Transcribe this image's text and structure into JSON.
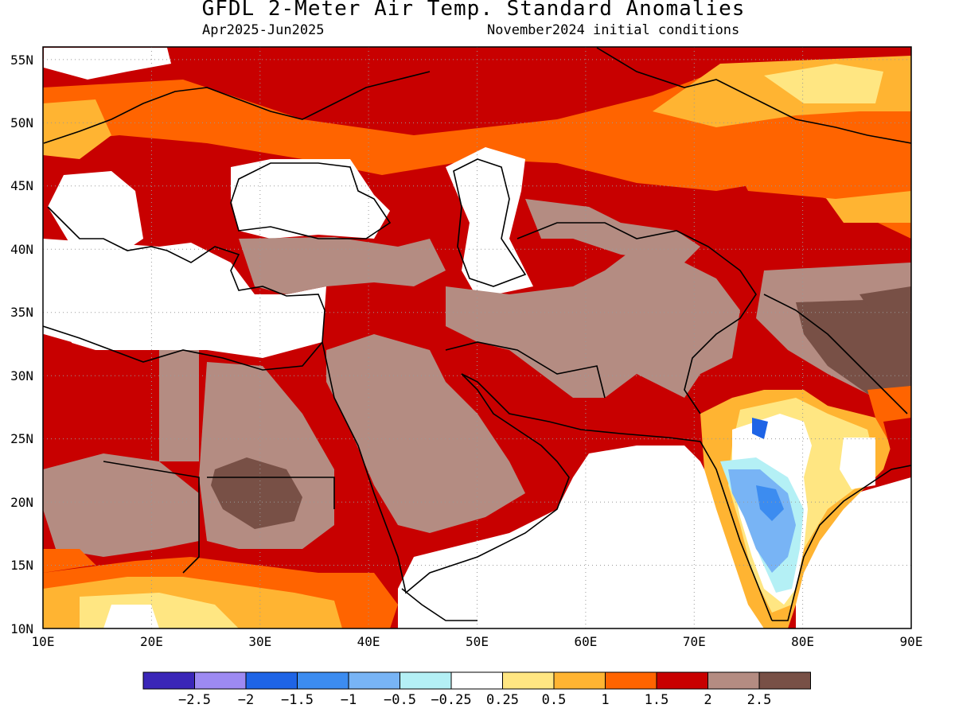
{
  "title": "GFDL 2-Meter Air Temp. Standard Anomalies",
  "subtitle_left": "Apr2025-Jun2025",
  "subtitle_right": "November2024 initial conditions",
  "axes": {
    "lon_range": [
      10,
      90
    ],
    "lat_range": [
      10,
      56
    ],
    "x_ticks": [
      "10E",
      "20E",
      "30E",
      "40E",
      "50E",
      "60E",
      "70E",
      "80E",
      "90E"
    ],
    "y_ticks": [
      "10N",
      "15N",
      "20N",
      "25N",
      "30N",
      "35N",
      "40N",
      "45N",
      "50N",
      "55N"
    ]
  },
  "legend": {
    "colors": [
      "#3a26b8",
      "#9d8af2",
      "#1e64e6",
      "#3c8cf0",
      "#78b4f5",
      "#b4f0f5",
      "#ffffff",
      "#ffe682",
      "#ffb432",
      "#ff6400",
      "#c80000",
      "#b48c82",
      "#785046"
    ],
    "labels": [
      "-2.5",
      "-2",
      "-1.5",
      "-1",
      "-0.5",
      "-0.25",
      "0.25",
      "0.5",
      "1",
      "1.5",
      "2",
      "2.5"
    ]
  },
  "chart_data": {
    "type": "heatmap",
    "title": "GFDL 2-Meter Air Temp. Standard Anomalies",
    "subtitle": "Apr2025-Jun2025  November2024 initial conditions",
    "x_range": [
      10,
      90
    ],
    "y_range": [
      10,
      56
    ],
    "levels": [
      -2.5,
      -2,
      -1.5,
      -1,
      -0.5,
      -0.25,
      0.25,
      0.5,
      1,
      1.5,
      2,
      2.5
    ],
    "grid": true,
    "legend": "bottom"
  }
}
